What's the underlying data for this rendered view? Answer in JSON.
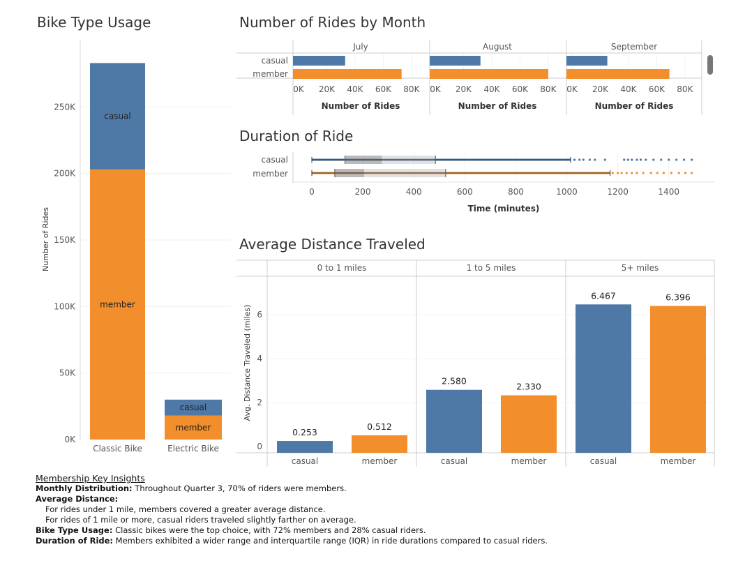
{
  "colors": {
    "casual": "#4e79a7",
    "member": "#f28e2b"
  },
  "chart_data": [
    {
      "type": "bar",
      "stacked": true,
      "title": "Bike Type Usage",
      "categories": [
        "Classic Bike",
        "Electric Bike"
      ],
      "series": [
        {
          "name": "member",
          "values": [
            203000,
            18000
          ]
        },
        {
          "name": "casual",
          "values": [
            80000,
            12000
          ]
        }
      ],
      "ylabel": "Number of Rides",
      "ylim": [
        0,
        290000
      ],
      "yticks": [
        0,
        50000,
        100000,
        150000,
        200000,
        250000
      ],
      "ytick_labels": [
        "0K",
        "50K",
        "100K",
        "150K",
        "200K",
        "250K"
      ],
      "grid": true
    },
    {
      "type": "bar",
      "orientation": "horizontal",
      "title": "Number of Rides by Month",
      "facets": [
        "July",
        "August",
        "September"
      ],
      "categories": [
        "casual",
        "member"
      ],
      "series": [
        {
          "name": "July",
          "values": [
            33000,
            73000
          ]
        },
        {
          "name": "August",
          "values": [
            32000,
            80000
          ]
        },
        {
          "name": "September",
          "values": [
            25000,
            69000
          ]
        }
      ],
      "xlabel": "Number of Rides",
      "xlim": [
        0,
        85000
      ],
      "xticks": [
        0,
        20000,
        40000,
        60000,
        80000
      ],
      "xtick_labels": [
        "0K",
        "20K",
        "40K",
        "60K",
        "80K"
      ]
    },
    {
      "type": "box",
      "title": "Duration of Ride",
      "categories": [
        "casual",
        "member"
      ],
      "series": [
        {
          "name": "casual",
          "min": 0,
          "q1": 130,
          "median": 275,
          "q3": 485,
          "whisker_high": 1015,
          "outliers": [
            1030,
            1050,
            1065,
            1090,
            1110,
            1150,
            1225,
            1240,
            1255,
            1275,
            1290,
            1310,
            1340,
            1370,
            1400,
            1430,
            1460,
            1490
          ]
        },
        {
          "name": "member",
          "min": 0,
          "q1": 90,
          "median": 205,
          "q3": 525,
          "whisker_high": 1170,
          "outliers": [
            1180,
            1200,
            1215,
            1235,
            1255,
            1275,
            1300,
            1330,
            1355,
            1380,
            1410,
            1440,
            1465,
            1490
          ]
        }
      ],
      "xlabel": "Time (minutes)",
      "xlim": [
        -5,
        1580
      ],
      "xticks": [
        0,
        200,
        400,
        600,
        800,
        1000,
        1200,
        1400
      ]
    },
    {
      "type": "bar",
      "title": "Average Distance Traveled",
      "facets": [
        "0 to 1 miles",
        "1 to 5 miles",
        "5+ miles"
      ],
      "categories": [
        "casual",
        "member"
      ],
      "series": [
        {
          "name": "0 to 1 miles",
          "values": [
            0.253,
            0.512
          ],
          "labels": [
            "0.253",
            "0.512"
          ]
        },
        {
          "name": "1 to 5 miles",
          "values": [
            2.58,
            2.33
          ],
          "labels": [
            "2.580",
            "2.330"
          ]
        },
        {
          "name": "5+ miles",
          "values": [
            6.467,
            6.396
          ],
          "labels": [
            "6.467",
            "6.396"
          ]
        }
      ],
      "ylabel": "Avg. Distance Traveled (miles)",
      "ylim": [
        -0.2,
        7.3
      ],
      "yticks": [
        0,
        2,
        4,
        6
      ]
    }
  ],
  "insights": {
    "heading": "Membership Key Insights",
    "monthly_label": "Monthly Distribution:",
    "monthly_text": " Throughout Quarter 3, 70% of riders were members.",
    "avg_label": "Average Distance:",
    "avg_line1": "For rides under 1 mile, members covered a greater average distance.",
    "avg_line2": "For rides of 1 mile or more, casual riders traveled slightly farther on average.",
    "bike_label": "Bike Type Usage:",
    "bike_text": " Classic bikes were the top choice, with 72% members and 28% casual riders.",
    "duration_label": "Duration of Ride:",
    "duration_text": " Members exhibited a wider range and interquartile range (IQR) in ride durations compared to casual riders."
  }
}
